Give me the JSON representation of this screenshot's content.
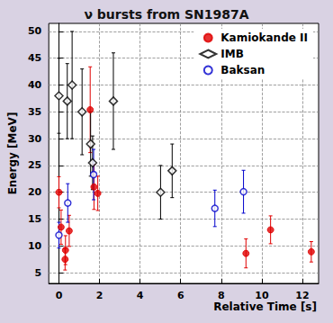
{
  "chart_data": {
    "type": "scatter",
    "title": "ν bursts from SN1987A",
    "x_label": "Relative Time [s]",
    "y_label": "Energy [MeV]",
    "xlim": [
      -0.5,
      12.8
    ],
    "ylim": [
      3,
      51.5
    ],
    "xticks": [
      0,
      2,
      4,
      6,
      8,
      10,
      12
    ],
    "yticks": [
      5,
      10,
      15,
      20,
      25,
      30,
      35,
      40,
      45,
      50
    ],
    "grid": true,
    "legend": "upper right",
    "series": [
      {
        "name": "Kamiokande II",
        "color": "#e00000",
        "marker": "circle",
        "x": [
          0,
          0.107,
          0.303,
          0.324,
          0.507,
          1.541,
          1.728,
          1.915,
          9.219,
          10.433,
          12.439
        ],
        "values": [
          20,
          13.5,
          7.5,
          9.2,
          12.8,
          35.4,
          21,
          19.8,
          8.6,
          13,
          8.9
        ],
        "errors": [
          2.9,
          3.2,
          2,
          2.7,
          2.9,
          8,
          4.2,
          3.2,
          2.7,
          2.6,
          1.9
        ]
      },
      {
        "name": "IMB",
        "color": "#000000",
        "marker": "diamond-open",
        "x": [
          0,
          0.412,
          0.65,
          1.141,
          1.562,
          1.66,
          2.684,
          5.01,
          5.582
        ],
        "values": [
          38,
          37,
          40,
          35,
          29,
          25.5,
          37,
          20,
          24
        ],
        "errors": [
          7,
          7,
          10,
          8,
          6,
          5,
          9,
          5,
          5
        ]
      },
      {
        "name": "Baksan",
        "color": "#0000cc",
        "marker": "circle-open",
        "x": [
          0,
          0.435,
          1.71,
          7.687,
          9.099
        ],
        "values": [
          12,
          18,
          23.3,
          17,
          20.1
        ],
        "errors": [
          2.4,
          3.6,
          4.7,
          3.4,
          4
        ]
      }
    ]
  }
}
